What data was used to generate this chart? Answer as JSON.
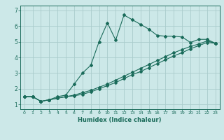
{
  "xlabel": "Humidex (Indice chaleur)",
  "background_color": "#cce8e8",
  "grid_color": "#aacccc",
  "line_color": "#1a6b5a",
  "xlim": [
    -0.5,
    23.5
  ],
  "ylim": [
    0.7,
    7.3
  ],
  "xticks": [
    0,
    1,
    2,
    3,
    4,
    5,
    6,
    7,
    8,
    9,
    10,
    11,
    12,
    13,
    14,
    15,
    16,
    17,
    18,
    19,
    20,
    21,
    22,
    23
  ],
  "yticks": [
    1,
    2,
    3,
    4,
    5,
    6,
    7
  ],
  "line1_x": [
    0,
    1,
    2,
    3,
    4,
    5,
    6,
    7,
    8,
    9,
    10,
    11,
    12,
    13,
    14,
    15,
    16,
    17,
    18,
    19,
    20,
    21,
    22,
    23
  ],
  "line1_y": [
    1.5,
    1.5,
    1.2,
    1.3,
    1.5,
    1.6,
    2.3,
    3.0,
    3.5,
    5.0,
    6.2,
    5.1,
    6.7,
    6.4,
    6.1,
    5.8,
    5.4,
    5.35,
    5.35,
    5.3,
    4.95,
    5.15,
    5.15,
    4.9
  ],
  "line2_x": [
    0,
    1,
    2,
    3,
    4,
    5,
    6,
    7,
    8,
    9,
    10,
    11,
    12,
    13,
    14,
    15,
    16,
    17,
    18,
    19,
    20,
    21,
    22,
    23
  ],
  "line2_y": [
    1.5,
    1.5,
    1.2,
    1.3,
    1.4,
    1.5,
    1.6,
    1.75,
    1.9,
    2.1,
    2.3,
    2.55,
    2.8,
    3.05,
    3.3,
    3.55,
    3.8,
    4.05,
    4.3,
    4.5,
    4.7,
    4.85,
    5.05,
    4.9
  ],
  "line3_x": [
    0,
    1,
    2,
    3,
    4,
    5,
    6,
    7,
    8,
    9,
    10,
    11,
    12,
    13,
    14,
    15,
    16,
    17,
    18,
    19,
    20,
    21,
    22,
    23
  ],
  "line3_y": [
    1.5,
    1.5,
    1.2,
    1.3,
    1.4,
    1.5,
    1.55,
    1.65,
    1.8,
    2.0,
    2.2,
    2.4,
    2.65,
    2.9,
    3.1,
    3.35,
    3.6,
    3.85,
    4.1,
    4.3,
    4.55,
    4.75,
    4.95,
    4.9
  ]
}
